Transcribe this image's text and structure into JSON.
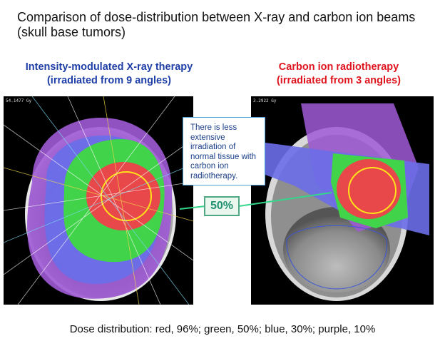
{
  "title": "Comparison of dose-distribution between X-ray and carbon ion beams (skull base tumors)",
  "left": {
    "heading_line1": "Intensity-modulated X-ray therapy",
    "heading_line2": "(irradiated from 9 angles)",
    "readout": "54.1477 Gy"
  },
  "right": {
    "heading_line1": "Carbon ion radiotherapy",
    "heading_line2": "(irradiated from 3 angles)",
    "readout": "3.2922 Gy"
  },
  "callout": "There is less extensive irradiation of normal tissue with carbon ion radiotherapy.",
  "marker": "50%",
  "caption": "Dose distribution: red, 96%; green, 50%; blue, 30%; purple, 10%",
  "colors": {
    "left_heading": "#1f3fa8",
    "right_heading": "#e0141e",
    "dose_red": "#e8484a",
    "dose_green": "#41d34a",
    "dose_blue": "#6a6ee8",
    "dose_purple": "#a05ad6",
    "connector": "#33d68a"
  }
}
